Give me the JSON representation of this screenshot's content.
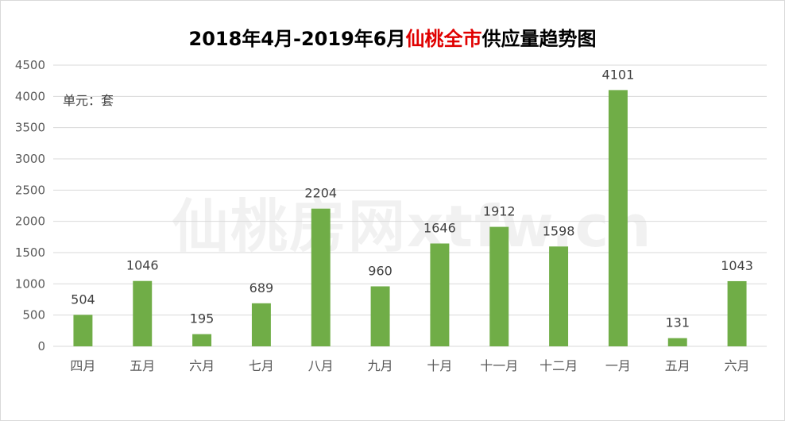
{
  "title": {
    "prefix": "2018年4月-2019年6月",
    "highlight": "仙桃全市",
    "suffix": "供应量趋势图",
    "highlight_color": "#e00000"
  },
  "unit_label": "单元：套",
  "watermark": "仙桃房网xtfw.cn",
  "colors": {
    "bar": "#70ad47",
    "grid": "#d9d9d9",
    "axis_text": "#595959"
  },
  "chart_data": {
    "type": "bar",
    "title": "2018年4月-2019年6月仙桃全市供应量趋势图",
    "categories": [
      "四月",
      "五月",
      "六月",
      "七月",
      "八月",
      "九月",
      "十月",
      "十一月",
      "十二月",
      "一月",
      "五月",
      "六月"
    ],
    "values": [
      504,
      1046,
      195,
      689,
      2204,
      960,
      1646,
      1912,
      1598,
      4101,
      131,
      1043
    ],
    "xlabel": "",
    "ylabel": "",
    "ylim": [
      0,
      4500
    ],
    "yticks": [
      0,
      500,
      1000,
      1500,
      2000,
      2500,
      3000,
      3500,
      4000,
      4500
    ],
    "grid": true,
    "legend": "none"
  }
}
